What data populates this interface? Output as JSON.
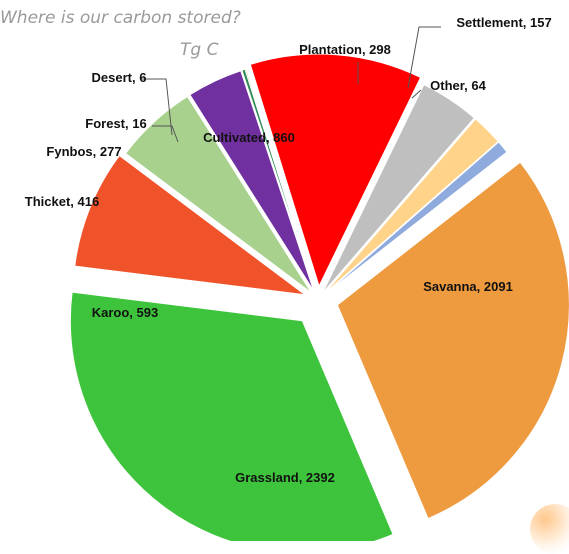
{
  "chart_data": {
    "type": "pie",
    "title": "Where is our carbon stored?",
    "subtitle": "Tg C",
    "slices": [
      {
        "label": "Savanna, 2091",
        "name": "Savanna",
        "value": 2091,
        "color": "#EE9A3F"
      },
      {
        "label": "Grassland, 2392",
        "name": "Grassland",
        "value": 2392,
        "color": "#3EC43C"
      },
      {
        "label": "Karoo, 593",
        "name": "Karoo",
        "value": 593,
        "color": "#F0522A"
      },
      {
        "label": "Thicket, 416",
        "name": "Thicket",
        "value": 416,
        "color": "#A9D18E"
      },
      {
        "label": "Fynbos, 277",
        "name": "Fynbos",
        "value": 277,
        "color": "#7030A0"
      },
      {
        "label": "Forest, 16",
        "name": "Forest",
        "value": 16,
        "color": "#2E8B57"
      },
      {
        "label": "Desert, 6",
        "name": "Desert",
        "value": 6,
        "color": "#C9A24A"
      },
      {
        "label": "Cultivated, 860",
        "name": "Cultivated",
        "value": 860,
        "color": "#FF0000"
      },
      {
        "label": "Plantation, 298",
        "name": "Plantation",
        "value": 298,
        "color": "#BFBFBF"
      },
      {
        "label": "Settlement, 157",
        "name": "Settlement",
        "value": 157,
        "color": "#FFD38A"
      },
      {
        "label": "Other, 64",
        "name": "Other",
        "value": 64,
        "color": "#8FAADC"
      }
    ]
  }
}
